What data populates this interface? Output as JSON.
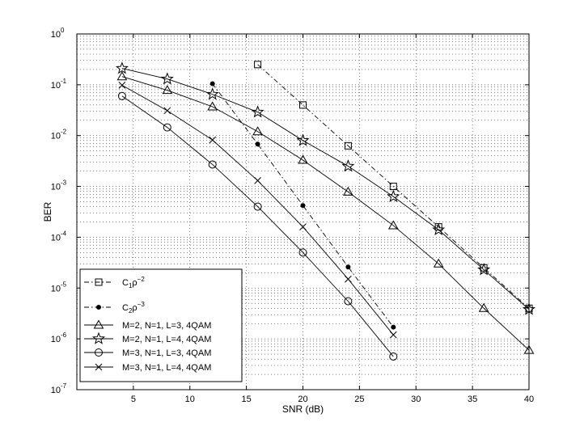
{
  "chart_data": {
    "type": "line",
    "xlabel": "SNR (dB)",
    "ylabel": "BER",
    "xlim": [
      0,
      40
    ],
    "ylim": [
      1e-07,
      1
    ],
    "yscale": "log",
    "grid": true,
    "legend_position": "bottom-left",
    "x_ticks": [
      5,
      10,
      15,
      20,
      25,
      30,
      35,
      40
    ],
    "x_tick_labels": [
      "5",
      "10",
      "15",
      "20",
      "25",
      "30",
      "35",
      "40"
    ],
    "y_ticks": [
      1e-07,
      1e-06,
      1e-05,
      0.0001,
      0.001,
      0.01,
      0.1,
      1
    ],
    "y_tick_labels": [
      {
        "base": "10",
        "exp": "-7"
      },
      {
        "base": "10",
        "exp": "-6"
      },
      {
        "base": "10",
        "exp": "-5"
      },
      {
        "base": "10",
        "exp": "-4"
      },
      {
        "base": "10",
        "exp": "-3"
      },
      {
        "base": "10",
        "exp": "-2"
      },
      {
        "base": "10",
        "exp": "-1"
      },
      {
        "base": "10",
        "exp": "0"
      }
    ],
    "series": [
      {
        "name": "C₁ρ⁻²",
        "legend": {
          "main": "C",
          "sub": "1",
          "mid": "ρ",
          "sup": "−2"
        },
        "line": "dashdot",
        "marker": "square",
        "color": "#000000",
        "x": [
          16,
          20,
          24,
          28,
          32,
          36,
          40
        ],
        "y": [
          0.25,
          0.04,
          0.0063,
          0.001,
          0.00016,
          2.5e-05,
          4e-06
        ]
      },
      {
        "name": "C₂ρ⁻³",
        "legend": {
          "main": "C",
          "sub": "2",
          "mid": "ρ",
          "sup": "−3"
        },
        "line": "dashdot",
        "marker": "dot",
        "color": "#000000",
        "x": [
          12,
          16,
          20,
          24,
          28
        ],
        "y": [
          0.105,
          0.0068,
          0.00042,
          2.6e-05,
          1.7e-06
        ]
      },
      {
        "name": "M=2, N=1, L=3, 4QAM",
        "legend": {
          "main": "M=2, N=1, L=3, 4QAM"
        },
        "line": "solid",
        "marker": "triangle",
        "color": "#000000",
        "x": [
          4,
          8,
          12,
          16,
          20,
          24,
          28,
          32,
          36,
          40
        ],
        "y": [
          0.145,
          0.078,
          0.037,
          0.012,
          0.0033,
          0.00078,
          0.00017,
          3e-05,
          4e-06,
          6e-07
        ]
      },
      {
        "name": "M=2, N=1, L=4, 4QAM",
        "legend": {
          "main": "M=2, N=1, L=4, 4QAM"
        },
        "line": "solid",
        "marker": "star",
        "color": "#000000",
        "x": [
          4,
          8,
          12,
          16,
          20,
          24,
          28,
          32,
          36,
          40
        ],
        "y": [
          0.21,
          0.13,
          0.065,
          0.029,
          0.008,
          0.0025,
          0.00063,
          0.00014,
          2.3e-05,
          3.8e-06
        ]
      },
      {
        "name": "M=3, N=1, L=3, 4QAM",
        "legend": {
          "main": "M=3, N=1, L=3, 4QAM"
        },
        "line": "solid",
        "marker": "circle",
        "color": "#000000",
        "x": [
          4,
          8,
          12,
          16,
          20,
          24,
          28
        ],
        "y": [
          0.06,
          0.0145,
          0.0027,
          0.0004,
          5e-05,
          5.5e-06,
          4.5e-07
        ]
      },
      {
        "name": "M=3, N=1, L=4, 4QAM",
        "legend": {
          "main": "M=3, N=1, L=4, 4QAM"
        },
        "line": "solid",
        "marker": "x",
        "color": "#000000",
        "x": [
          4,
          8,
          12,
          16,
          20,
          24,
          28
        ],
        "y": [
          0.098,
          0.031,
          0.0082,
          0.0013,
          0.00016,
          1.5e-05,
          1.2e-06
        ]
      }
    ]
  }
}
